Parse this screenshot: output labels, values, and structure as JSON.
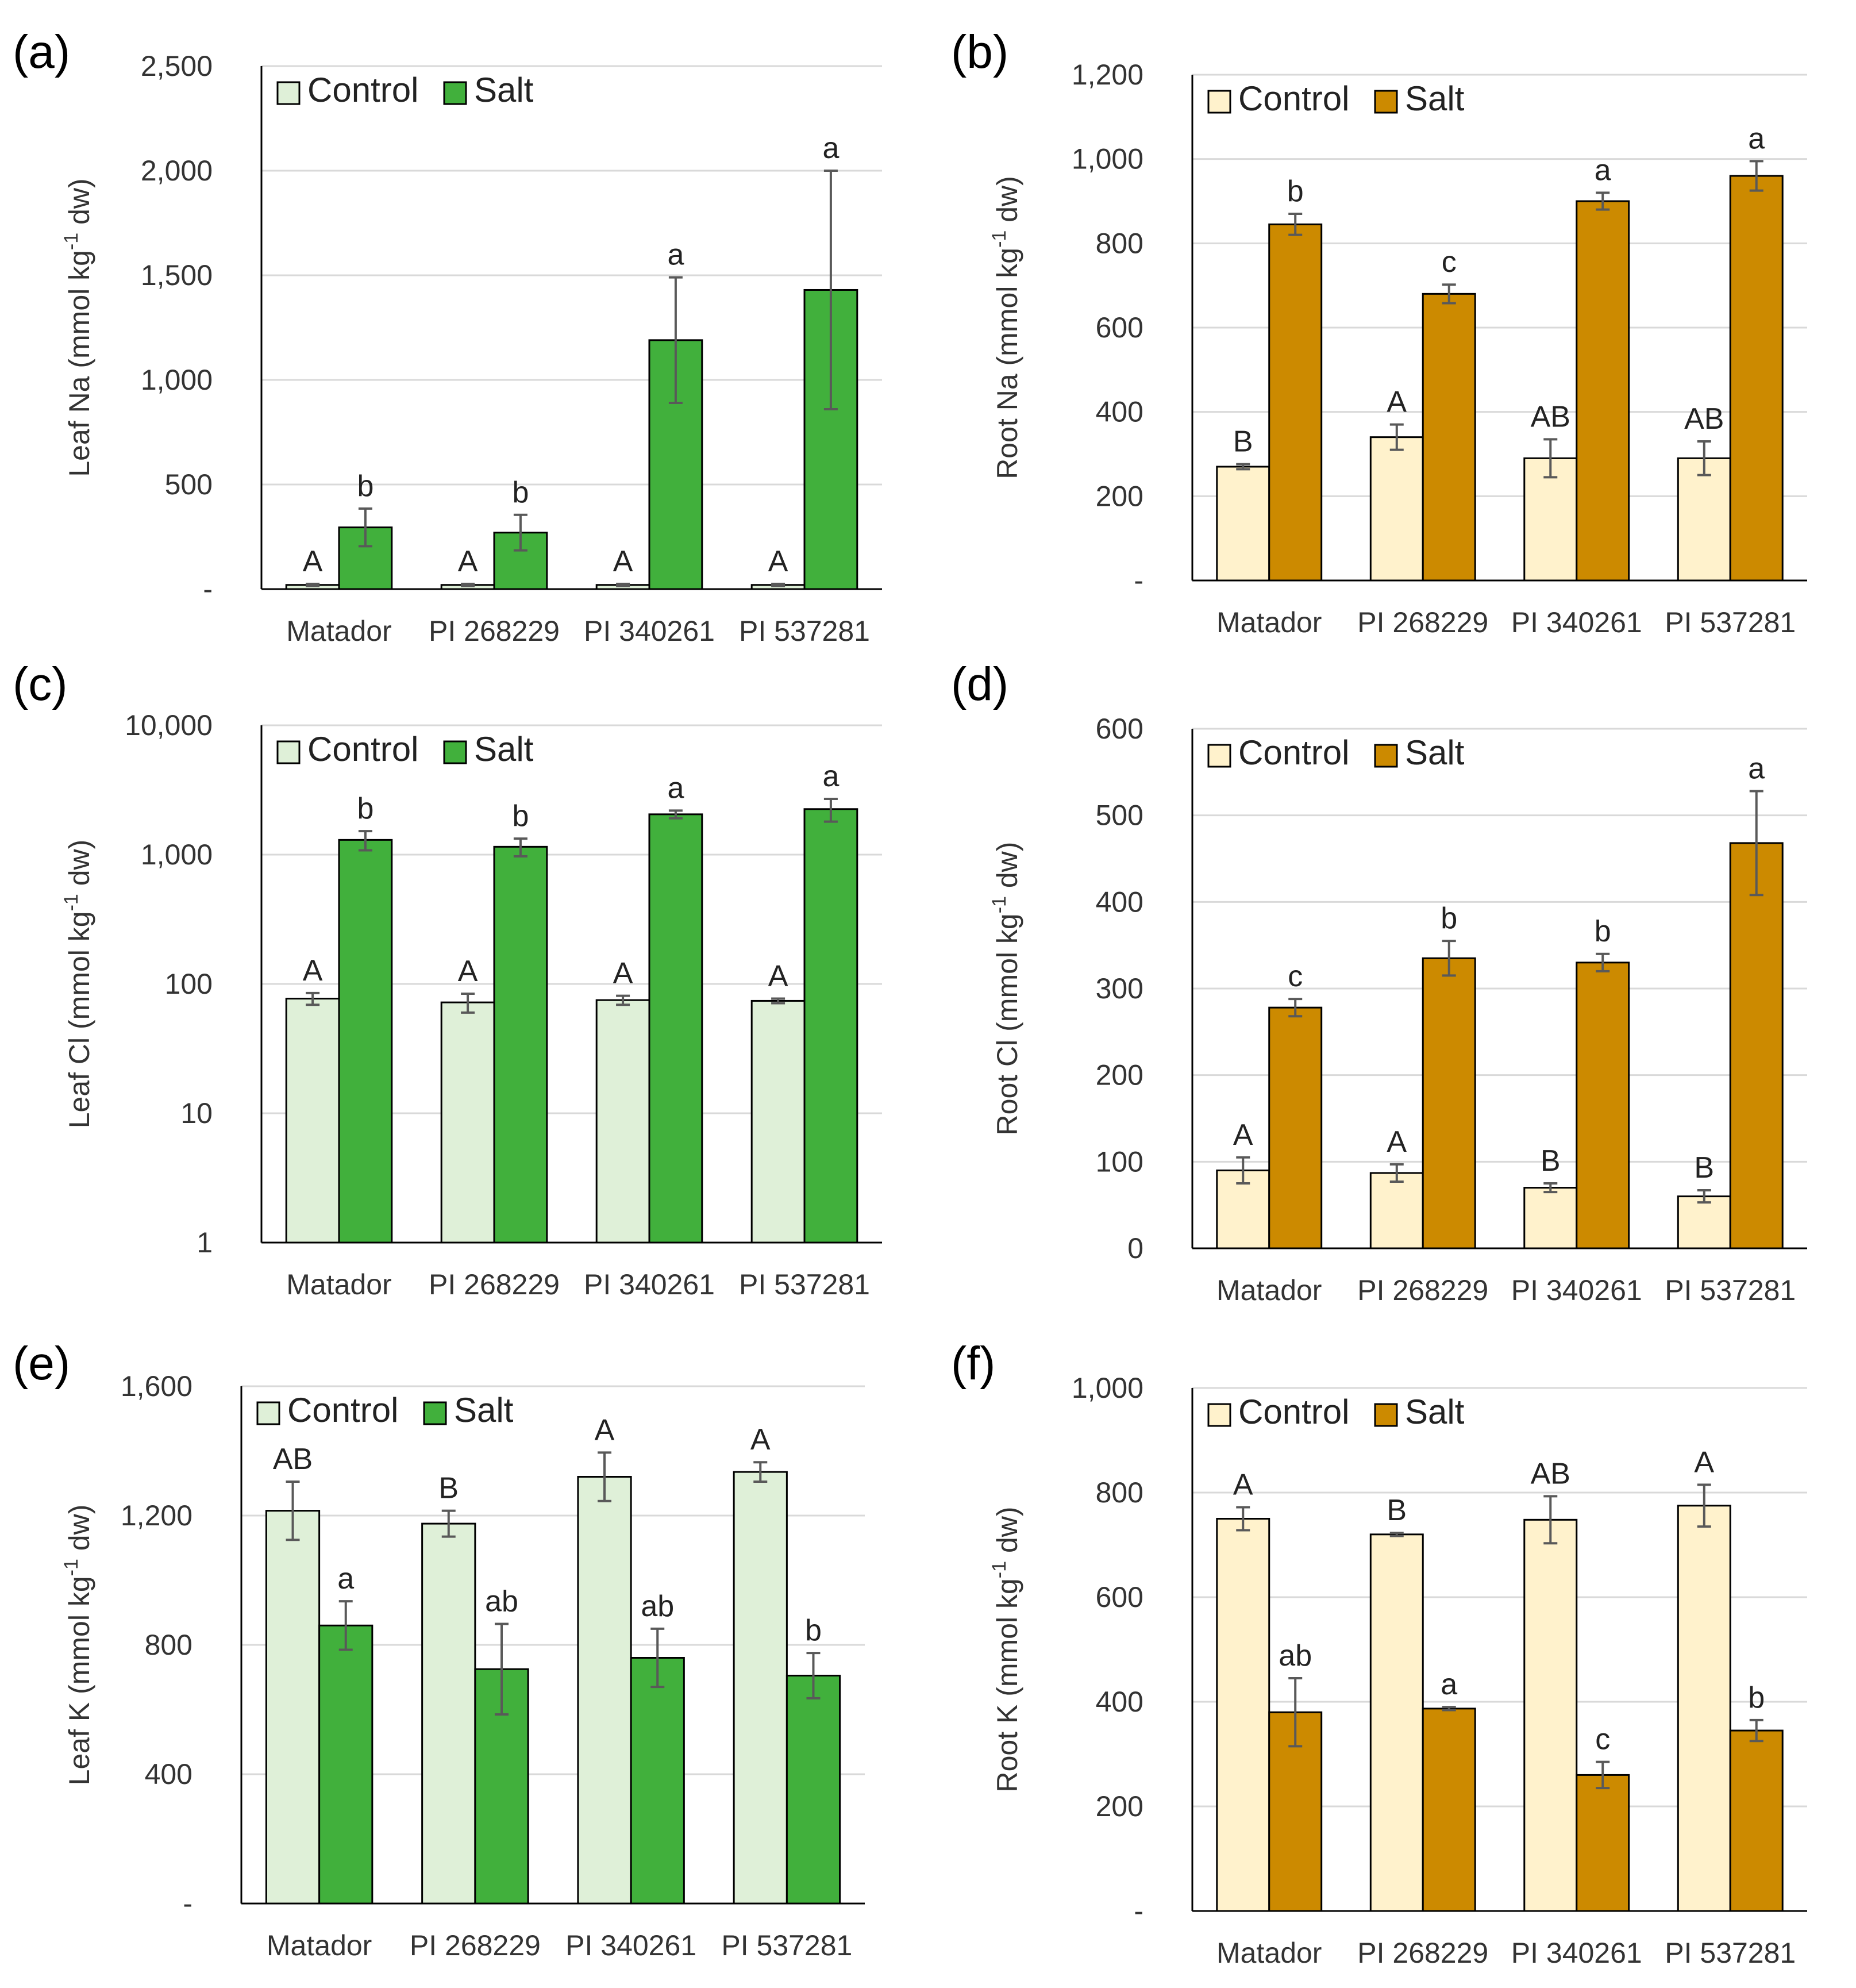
{
  "legend_labels": {
    "control": "Control",
    "salt": "Salt"
  },
  "colors": {
    "leaf_control": "#dff0d8",
    "leaf_salt": "#41b03c",
    "root_control": "#fff2cc",
    "root_salt": "#cc8a00",
    "error_bar": "#595959",
    "gridline": "#d9d9d9",
    "axis": "#000000"
  },
  "chart_data": [
    {
      "panel": "(a)",
      "type": "bar",
      "scale": "linear",
      "tissue": "leaf",
      "ylabel_main": "Leaf Na (mmol kg",
      "ylabel_sup": "-1",
      "ylabel_end": " dw)",
      "categories": [
        "Matador",
        "PI 268229",
        "PI 340261",
        "PI 537281"
      ],
      "ylim": [
        0,
        2500
      ],
      "yticks": [
        0,
        500,
        1000,
        1500,
        2000,
        2500
      ],
      "ytick_labels": [
        "-",
        "500",
        "1,000",
        "1,500",
        "2,000",
        "2,500"
      ],
      "series": [
        {
          "name": "Control",
          "values": [
            20,
            20,
            20,
            20
          ],
          "errors": [
            5,
            5,
            5,
            5
          ],
          "letters": [
            "A",
            "A",
            "A",
            "A"
          ]
        },
        {
          "name": "Salt",
          "values": [
            295,
            270,
            1190,
            1430
          ],
          "errors": [
            90,
            85,
            300,
            570
          ],
          "letters": [
            "b",
            "b",
            "a",
            "a"
          ]
        }
      ]
    },
    {
      "panel": "(b)",
      "type": "bar",
      "scale": "linear",
      "tissue": "root",
      "ylabel_main": "Root Na (mmol kg",
      "ylabel_sup": "-1",
      "ylabel_end": " dw)",
      "categories": [
        "Matador",
        "PI 268229",
        "PI 340261",
        "PI 537281"
      ],
      "ylim": [
        0,
        1200
      ],
      "yticks": [
        0,
        200,
        400,
        600,
        800,
        1000,
        1200
      ],
      "ytick_labels": [
        "-",
        "200",
        "400",
        "600",
        "800",
        "1,000",
        "1,200"
      ],
      "series": [
        {
          "name": "Control",
          "values": [
            270,
            340,
            290,
            290
          ],
          "errors": [
            6,
            30,
            45,
            40
          ],
          "letters": [
            "B",
            "A",
            "AB",
            "AB"
          ]
        },
        {
          "name": "Salt",
          "values": [
            845,
            680,
            900,
            960
          ],
          "errors": [
            25,
            22,
            20,
            35
          ],
          "letters": [
            "b",
            "c",
            "a",
            "a"
          ]
        }
      ]
    },
    {
      "panel": "(c)",
      "type": "bar",
      "scale": "log",
      "tissue": "leaf",
      "ylabel_main": "Leaf Cl (mmol kg",
      "ylabel_sup": "-1",
      "ylabel_end": " dw)",
      "categories": [
        "Matador",
        "PI 268229",
        "PI 340261",
        "PI 537281"
      ],
      "ylim": [
        1,
        10000
      ],
      "yticks": [
        1,
        10,
        100,
        1000,
        10000
      ],
      "ytick_labels": [
        "1",
        "10",
        "100",
        "1,000",
        "10,000"
      ],
      "series": [
        {
          "name": "Control",
          "values": [
            77,
            72,
            75,
            74
          ],
          "errors": [
            8,
            12,
            6,
            3
          ],
          "letters": [
            "A",
            "A",
            "A",
            "A"
          ]
        },
        {
          "name": "Salt",
          "values": [
            1300,
            1150,
            2050,
            2250
          ],
          "errors": [
            220,
            180,
            140,
            450
          ],
          "letters": [
            "b",
            "b",
            "a",
            "a"
          ]
        }
      ]
    },
    {
      "panel": "(d)",
      "type": "bar",
      "scale": "linear",
      "tissue": "root",
      "ylabel_main": "Root Cl (mmol kg",
      "ylabel_sup": "-1",
      "ylabel_end": " dw)",
      "categories": [
        "Matador",
        "PI 268229",
        "PI 340261",
        "PI 537281"
      ],
      "ylim": [
        0,
        600
      ],
      "yticks": [
        0,
        100,
        200,
        300,
        400,
        500,
        600
      ],
      "ytick_labels": [
        "0",
        "100",
        "200",
        "300",
        "400",
        "500",
        "600"
      ],
      "series": [
        {
          "name": "Control",
          "values": [
            90,
            87,
            70,
            60
          ],
          "errors": [
            15,
            10,
            5,
            7
          ],
          "letters": [
            "A",
            "A",
            "B",
            "B"
          ]
        },
        {
          "name": "Salt",
          "values": [
            278,
            335,
            330,
            468
          ],
          "errors": [
            10,
            20,
            10,
            60
          ],
          "letters": [
            "c",
            "b",
            "b",
            "a"
          ]
        }
      ]
    },
    {
      "panel": "(e)",
      "type": "bar",
      "scale": "linear",
      "tissue": "leaf",
      "ylabel_main": "Leaf K (mmol kg",
      "ylabel_sup": "-1",
      "ylabel_end": " dw)",
      "categories": [
        "Matador",
        "PI 268229",
        "PI 340261",
        "PI 537281"
      ],
      "ylim": [
        0,
        1600
      ],
      "yticks": [
        0,
        400,
        800,
        1200,
        1600
      ],
      "ytick_labels": [
        "-",
        "400",
        "800",
        "1,200",
        "1,600"
      ],
      "series": [
        {
          "name": "Control",
          "values": [
            1215,
            1175,
            1320,
            1335
          ],
          "errors": [
            90,
            40,
            75,
            30
          ],
          "letters": [
            "AB",
            "B",
            "A",
            "A"
          ]
        },
        {
          "name": "Salt",
          "values": [
            860,
            725,
            760,
            705
          ],
          "errors": [
            75,
            140,
            90,
            70
          ],
          "letters": [
            "a",
            "ab",
            "ab",
            "b"
          ]
        }
      ]
    },
    {
      "panel": "(f)",
      "type": "bar",
      "scale": "linear",
      "tissue": "root",
      "ylabel_main": "Root K (mmol kg",
      "ylabel_sup": "-1",
      "ylabel_end": " dw)",
      "categories": [
        "Matador",
        "PI 268229",
        "PI 340261",
        "PI 537281"
      ],
      "ylim": [
        0,
        1000
      ],
      "yticks": [
        0,
        200,
        400,
        600,
        800,
        1000
      ],
      "ytick_labels": [
        "-",
        "200",
        "400",
        "600",
        "800",
        "1,000"
      ],
      "series": [
        {
          "name": "Control",
          "values": [
            750,
            720,
            748,
            775
          ],
          "errors": [
            22,
            3,
            45,
            40
          ],
          "letters": [
            "A",
            "B",
            "AB",
            "A"
          ]
        },
        {
          "name": "Salt",
          "values": [
            380,
            387,
            260,
            345
          ],
          "errors": [
            65,
            3,
            25,
            20
          ],
          "letters": [
            "ab",
            "a",
            "c",
            "b"
          ]
        }
      ]
    }
  ]
}
